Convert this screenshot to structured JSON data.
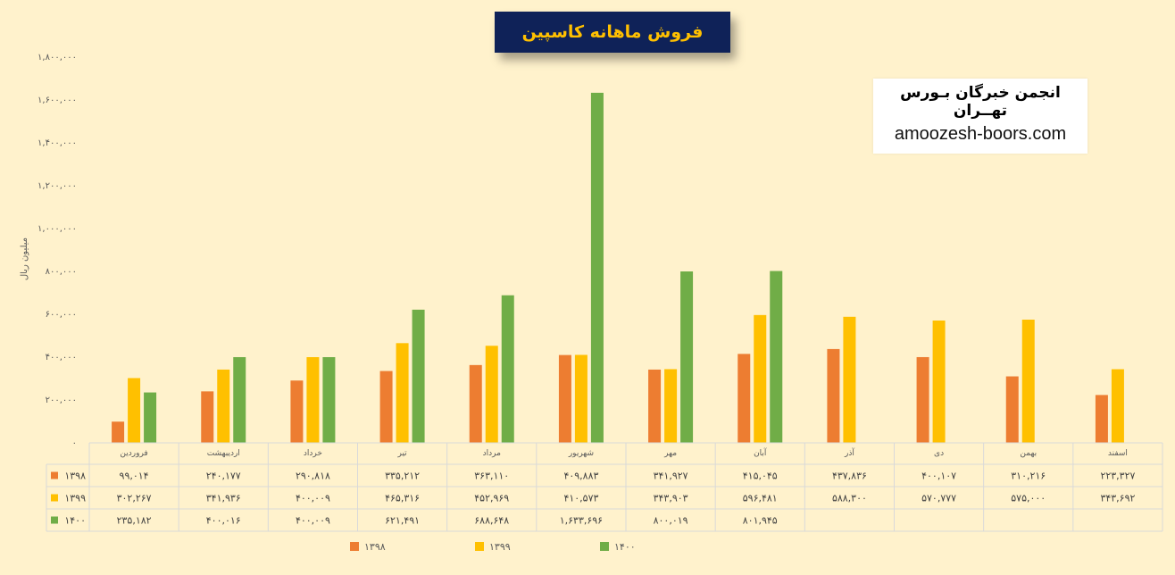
{
  "title": "فروش ماهانه کاسپین",
  "watermark": {
    "name": "انجمن خبرگان بـورس تهــران",
    "url": "amoozesh-boors.com"
  },
  "chart_data": {
    "type": "bar",
    "ylabel": "میلیون ریال",
    "ylim": [
      0,
      1800000
    ],
    "yticks": [
      "۰",
      "۲۰۰,۰۰۰",
      "۴۰۰,۰۰۰",
      "۶۰۰,۰۰۰",
      "۸۰۰,۰۰۰",
      "۱,۰۰۰,۰۰۰",
      "۱,۲۰۰,۰۰۰",
      "۱,۴۰۰,۰۰۰",
      "۱,۶۰۰,۰۰۰",
      "۱,۸۰۰,۰۰۰"
    ],
    "categories": [
      "فروردین",
      "اردیبهشت",
      "خرداد",
      "تیر",
      "مرداد",
      "شهریور",
      "مهر",
      "آبان",
      "آذر",
      "دی",
      "بهمن",
      "اسفند"
    ],
    "legend_position": "bottom",
    "grid": false,
    "series": [
      {
        "name": "۱۳۹۸",
        "color": "#ed7d31",
        "values": [
          99014,
          240177,
          290818,
          335212,
          363110,
          409883,
          341927,
          415045,
          437836,
          400107,
          310216,
          223327
        ],
        "labels": [
          "۹۹,۰۱۴",
          "۲۴۰,۱۷۷",
          "۲۹۰,۸۱۸",
          "۳۳۵,۲۱۲",
          "۳۶۳,۱۱۰",
          "۴۰۹,۸۸۳",
          "۳۴۱,۹۲۷",
          "۴۱۵,۰۴۵",
          "۴۳۷,۸۳۶",
          "۴۰۰,۱۰۷",
          "۳۱۰,۲۱۶",
          "۲۲۳,۳۲۷"
        ]
      },
      {
        "name": "۱۳۹۹",
        "color": "#ffc000",
        "values": [
          302267,
          341936,
          400009,
          465316,
          452969,
          410573,
          343903,
          596481,
          588300,
          570777,
          575000,
          343692
        ],
        "labels": [
          "۳۰۲,۲۶۷",
          "۳۴۱,۹۳۶",
          "۴۰۰,۰۰۹",
          "۴۶۵,۳۱۶",
          "۴۵۲,۹۶۹",
          "۴۱۰,۵۷۳",
          "۳۴۳,۹۰۳",
          "۵۹۶,۴۸۱",
          "۵۸۸,۳۰۰",
          "۵۷۰,۷۷۷",
          "۵۷۵,۰۰۰",
          "۳۴۳,۶۹۲"
        ]
      },
      {
        "name": "۱۴۰۰",
        "color": "#70ad47",
        "values": [
          235182,
          400016,
          400009,
          621491,
          688648,
          1633696,
          800019,
          801945,
          null,
          null,
          null,
          null
        ],
        "labels": [
          "۲۳۵,۱۸۲",
          "۴۰۰,۰۱۶",
          "۴۰۰,۰۰۹",
          "۶۲۱,۴۹۱",
          "۶۸۸,۶۴۸",
          "۱,۶۳۳,۶۹۶",
          "۸۰۰,۰۱۹",
          "۸۰۱,۹۴۵",
          "",
          "",
          "",
          ""
        ]
      }
    ]
  }
}
